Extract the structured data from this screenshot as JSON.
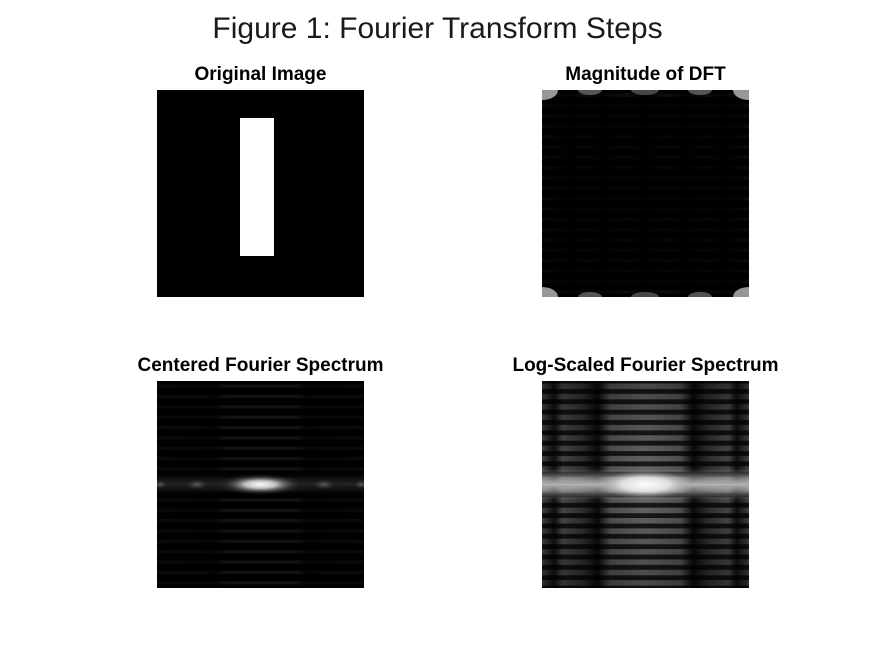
{
  "figure": {
    "title": "Figure 1: Fourier Transform Steps"
  },
  "panels": [
    {
      "title": "Original Image"
    },
    {
      "title": "Magnitude of DFT"
    },
    {
      "title": "Centered Fourier Spectrum"
    },
    {
      "title": "Log-Scaled Fourier Spectrum"
    }
  ],
  "colors": {
    "background": "#ffffff",
    "image_black": "#000000",
    "image_white": "#ffffff"
  }
}
